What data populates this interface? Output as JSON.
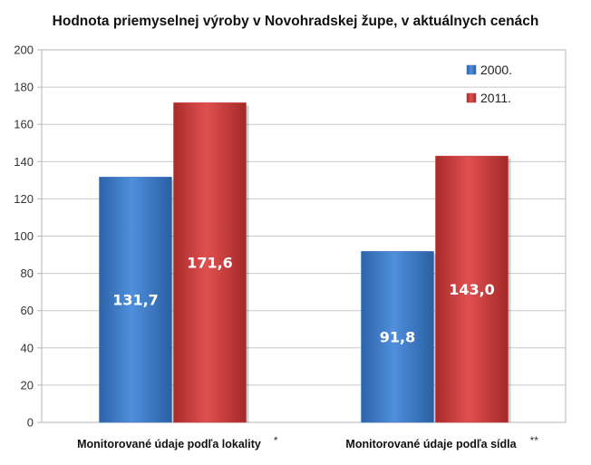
{
  "chart_data": {
    "type": "bar",
    "title": "Hodnota priemyselnej výroby v Novohradskej župe, v aktuálnych cenách",
    "categories": [
      "Monitorované údaje podľa lokality",
      "Monitorované údaje podľa sídla"
    ],
    "category_notes": [
      "*",
      "**"
    ],
    "series": [
      {
        "name": "2000.",
        "values": [
          131.7,
          91.8
        ],
        "labels": [
          "131,7",
          "91,8"
        ],
        "color": "#3a78c9"
      },
      {
        "name": "2011.",
        "values": [
          171.6,
          143.0
        ],
        "labels": [
          "171,6",
          "143,0"
        ],
        "color": "#c93a3a"
      }
    ],
    "ylim": [
      0,
      200
    ],
    "yticks": [
      0,
      20,
      40,
      60,
      80,
      100,
      120,
      140,
      160,
      180,
      200
    ],
    "grid": true,
    "legend": "top-right"
  }
}
